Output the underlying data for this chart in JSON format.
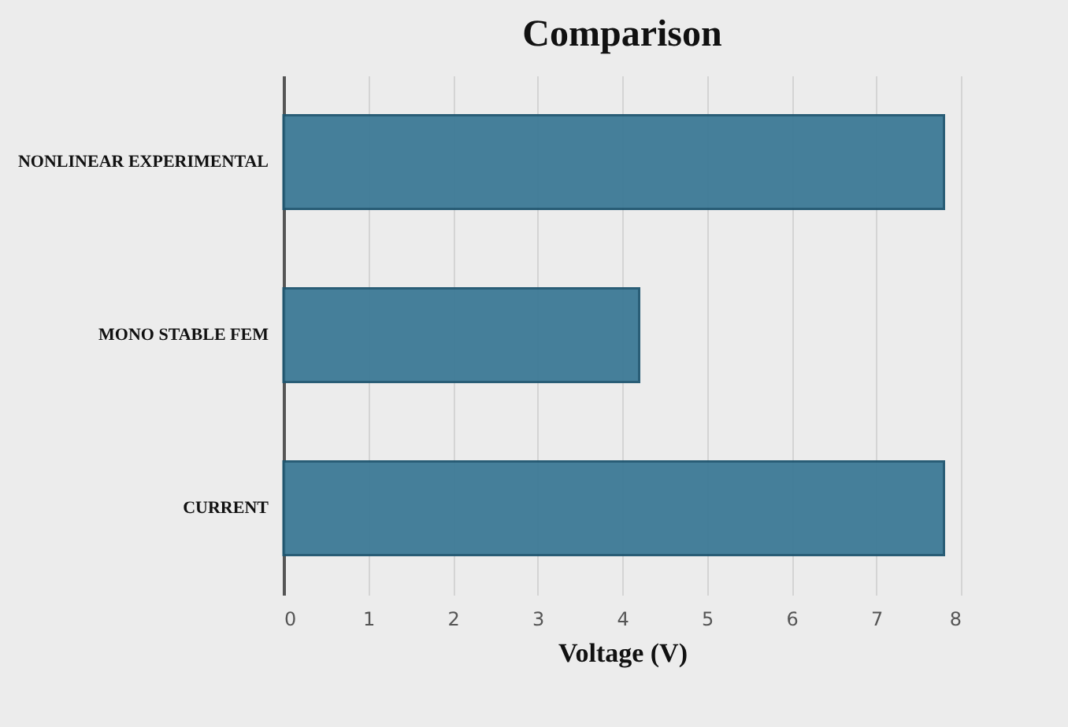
{
  "chart_data": {
    "type": "bar",
    "orientation": "horizontal",
    "title": "Comparison",
    "xlabel": "Voltage (V)",
    "categories": [
      "NONLINEAR EXPERIMENTAL",
      "MONO STABLE FEM",
      "CURRENT"
    ],
    "values": [
      7.8,
      4.2,
      7.8
    ],
    "color": "#3d7a96",
    "xlim": [
      0,
      8
    ],
    "xticks": [
      0,
      1,
      2,
      3,
      4,
      5,
      6,
      7,
      8
    ],
    "grid": "x"
  }
}
